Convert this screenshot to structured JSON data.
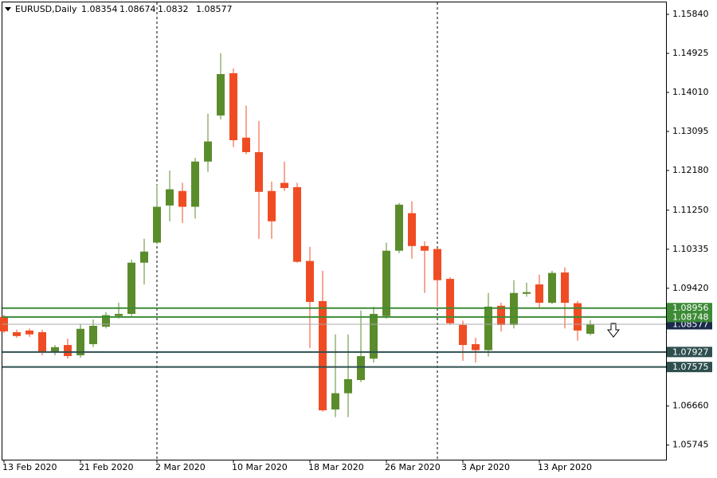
{
  "chart_data": {
    "type": "candlestick",
    "symbol": "EURUSD,Daily",
    "categories": [
      "13 Feb 2020",
      null,
      null,
      null,
      null,
      null,
      "21 Feb 2020",
      null,
      null,
      null,
      null,
      null,
      "2 Mar 2020",
      null,
      null,
      null,
      null,
      null,
      "10 Mar 2020",
      null,
      null,
      null,
      null,
      null,
      "18 Mar 2020",
      null,
      null,
      null,
      null,
      null,
      "26 Mar 2020",
      null,
      null,
      null,
      null,
      null,
      "3 Apr 2020",
      null,
      null,
      null,
      null,
      null,
      "13 Apr 2020",
      null,
      null,
      null,
      null
    ],
    "open": [
      1.0875,
      1.0839,
      1.0843,
      1.0839,
      1.0792,
      1.0809,
      1.0785,
      1.0811,
      1.0852,
      1.0877,
      1.0882,
      1.1002,
      1.1049,
      1.1136,
      1.117,
      1.1133,
      1.1239,
      1.1347,
      1.1446,
      1.1295,
      1.1261,
      1.117,
      1.1189,
      1.1179,
      1.1006,
      1.0912,
      1.0658,
      1.0696,
      1.0727,
      1.0777,
      1.0877,
      1.103,
      1.1118,
      1.1041,
      1.1034,
      1.0964,
      1.0856,
      1.0811,
      1.0797,
      1.0901,
      1.0856,
      1.0929,
      1.0951,
      1.0908,
      1.0979,
      1.0907,
      1.08354
    ],
    "high": [
      1.088,
      1.0845,
      1.0848,
      1.0845,
      1.0809,
      1.0824,
      1.0858,
      1.0869,
      1.0886,
      1.0908,
      1.1009,
      1.1058,
      1.1185,
      1.1218,
      1.1189,
      1.1248,
      1.1351,
      1.1493,
      1.1457,
      1.137,
      1.1334,
      1.1192,
      1.1239,
      1.1189,
      1.1039,
      1.0983,
      1.0834,
      1.0834,
      1.089,
      1.0899,
      1.1049,
      1.1142,
      1.1146,
      1.1052,
      1.1035,
      1.0968,
      1.0866,
      1.0826,
      1.0931,
      1.0908,
      1.0961,
      1.0955,
      1.0974,
      1.0983,
      1.0991,
      1.0912,
      1.08674
    ],
    "low": [
      1.0837,
      1.0826,
      1.0828,
      1.0785,
      1.0785,
      1.0777,
      1.0779,
      1.0804,
      1.0848,
      1.0871,
      1.0877,
      1.0951,
      1.1045,
      1.1099,
      1.1095,
      1.1105,
      1.1215,
      1.1338,
      1.1273,
      1.1256,
      1.1058,
      1.1058,
      1.117,
      1.1002,
      1.0802,
      1.0653,
      1.064,
      1.064,
      1.0722,
      1.0768,
      1.0871,
      1.1024,
      1.1011,
      1.0931,
      1.0899,
      1.0856,
      1.0772,
      1.0768,
      1.0782,
      1.0841,
      1.0848,
      1.0922,
      1.0897,
      1.0905,
      1.0848,
      1.0819,
      1.0832
    ],
    "close": [
      1.0841,
      1.083,
      1.0834,
      1.0792,
      1.0804,
      1.0783,
      1.0847,
      1.0854,
      1.0879,
      1.0882,
      1.1002,
      1.1028,
      1.1133,
      1.1174,
      1.1133,
      1.1239,
      1.1286,
      1.1444,
      1.1289,
      1.1261,
      1.1168,
      1.1099,
      1.1177,
      1.1004,
      1.091,
      1.0656,
      1.0696,
      1.0729,
      1.0783,
      1.0882,
      1.103,
      1.1138,
      1.1041,
      1.103,
      1.0961,
      1.086,
      1.0809,
      1.0797,
      1.0899,
      1.0856,
      1.0931,
      1.0933,
      1.0908,
      1.0978,
      1.0908,
      1.0843,
      1.08577
    ],
    "up_color": "#5b8c2c",
    "down_color": "#f04c24",
    "ylim": [
      1.05403,
      1.16176
    ],
    "yticks": [
      {
        "value": 1.1584,
        "label": "1.15840"
      },
      1.14925,
      {
        "value": 1.1401,
        "label": "1.14010"
      },
      1.13095,
      {
        "value": 1.1218,
        "label": "1.12180"
      },
      {
        "value": 1.1125,
        "label": "1.11250"
      },
      1.10335,
      {
        "value": 1.0942,
        "label": "1.09420"
      },
      {
        "value": 1.0666,
        "label": "1.06660"
      },
      1.05745
    ],
    "levels": [
      {
        "value": 1.08577,
        "line_color": "#a8a8a8",
        "box_color": "#1c2a4a"
      },
      {
        "value": 1.08956,
        "line_color": "#3d8b37",
        "box_color": "#3d8b37"
      },
      {
        "value": 1.08748,
        "line_color": "#3d8b37",
        "box_color": "#3d8b37"
      },
      {
        "value": 1.07927,
        "line_color": "#2f4f4f",
        "box_color": "#2f4f4f"
      },
      {
        "value": 1.07575,
        "line_color": "#2f4f4f",
        "box_color": "#2f4f4f"
      }
    ]
  }
}
